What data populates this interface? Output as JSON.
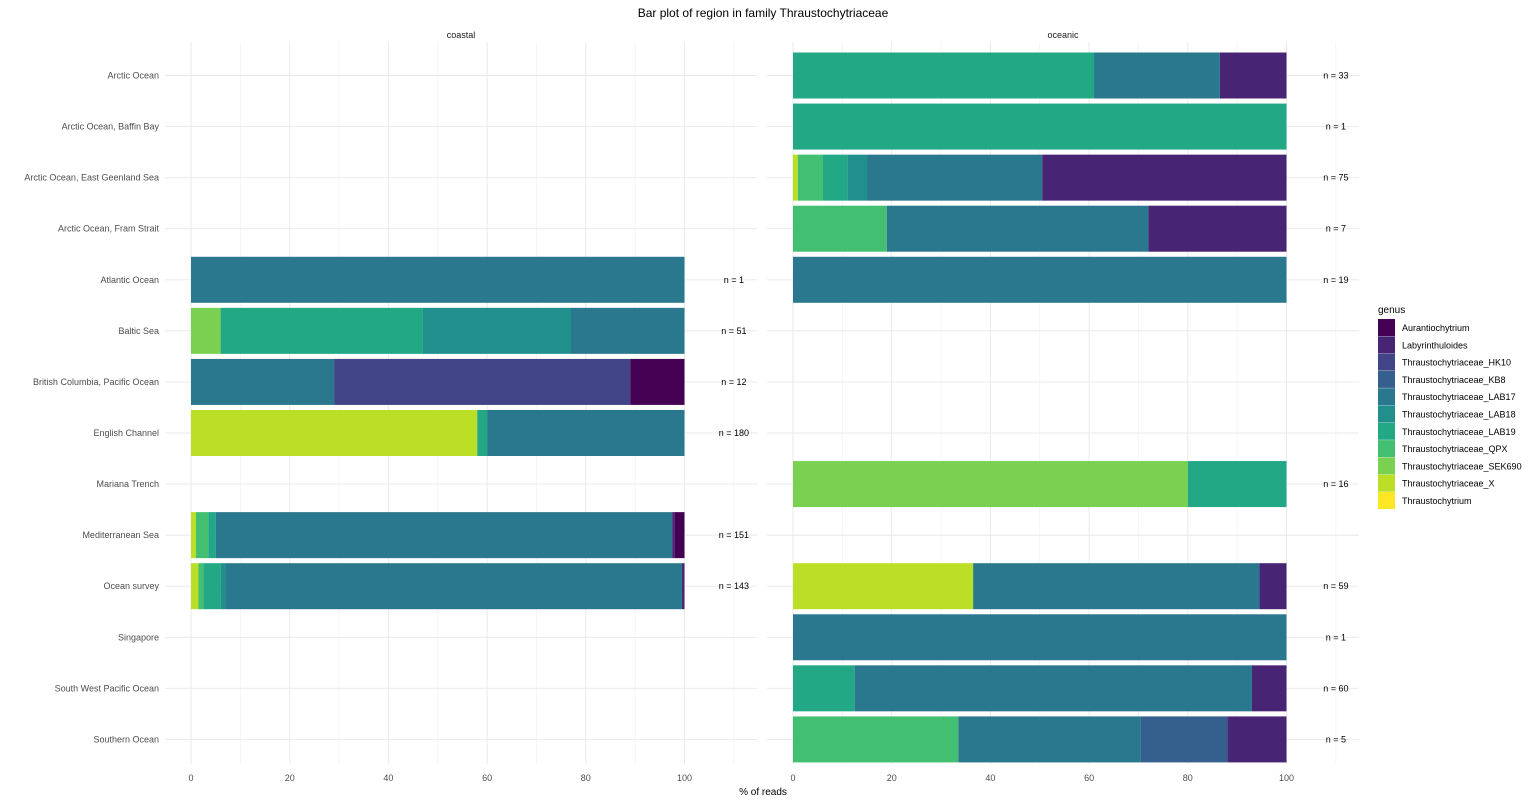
{
  "chart_data": {
    "type": "bar",
    "orientation": "horizontal-stacked",
    "title": "Bar plot of region in family Thraustochytriaceae",
    "xlabel": "% of reads",
    "xlim": [
      0,
      110
    ],
    "xticks": [
      0,
      20,
      40,
      60,
      80,
      100
    ],
    "grid": true,
    "legend_position": "right",
    "legend_title": "genus",
    "regions": [
      "Arctic Ocean",
      "Arctic Ocean, Baffin Bay",
      "Arctic Ocean, East Geenland Sea",
      "Arctic Ocean, Fram Strait",
      "Atlantic Ocean",
      "Baltic Sea",
      "British Columbia, Pacific Ocean",
      "English Channel",
      "Mariana Trench",
      "Mediterranean Sea",
      "Ocean survey",
      "Singapore",
      "South West Pacific Ocean",
      "Southern Ocean"
    ],
    "genera": [
      {
        "name": "Aurantiochytrium",
        "color": "#440154"
      },
      {
        "name": "Labyrinthuloides",
        "color": "#482475"
      },
      {
        "name": "Thraustochytriaceae_HK10",
        "color": "#414487"
      },
      {
        "name": "Thraustochytriaceae_KB8",
        "color": "#355F8D"
      },
      {
        "name": "Thraustochytriaceae_LAB17",
        "color": "#2A788E"
      },
      {
        "name": "Thraustochytriaceae_LAB18",
        "color": "#21908D"
      },
      {
        "name": "Thraustochytriaceae_LAB19",
        "color": "#22A884"
      },
      {
        "name": "Thraustochytriaceae_QPX",
        "color": "#43BF71"
      },
      {
        "name": "Thraustochytriaceae_SEK690",
        "color": "#7AD151"
      },
      {
        "name": "Thraustochytriaceae_X",
        "color": "#BBDF27"
      },
      {
        "name": "Thraustochytrium",
        "color": "#FDE725"
      }
    ],
    "facets": [
      {
        "name": "coastal",
        "bars": [
          {
            "region": "Atlantic Ocean",
            "n_label": "n = 1",
            "segments": [
              {
                "genus": "Thraustochytriaceae_LAB17",
                "value": 100
              }
            ]
          },
          {
            "region": "Baltic Sea",
            "n_label": "n = 51",
            "segments": [
              {
                "genus": "Thraustochytriaceae_SEK690",
                "value": 6
              },
              {
                "genus": "Thraustochytriaceae_LAB19",
                "value": 41
              },
              {
                "genus": "Thraustochytriaceae_LAB18",
                "value": 30
              },
              {
                "genus": "Thraustochytriaceae_LAB17",
                "value": 23
              }
            ]
          },
          {
            "region": "British Columbia, Pacific Ocean",
            "n_label": "n = 12",
            "segments": [
              {
                "genus": "Thraustochytriaceae_LAB17",
                "value": 29
              },
              {
                "genus": "Thraustochytriaceae_HK10",
                "value": 60
              },
              {
                "genus": "Aurantiochytrium",
                "value": 11
              }
            ]
          },
          {
            "region": "English Channel",
            "n_label": "n = 180",
            "segments": [
              {
                "genus": "Thraustochytriaceae_X",
                "value": 58
              },
              {
                "genus": "Thraustochytriaceae_LAB19",
                "value": 2
              },
              {
                "genus": "Thraustochytriaceae_LAB17",
                "value": 40
              }
            ]
          },
          {
            "region": "Mediterranean Sea",
            "n_label": "n = 151",
            "segments": [
              {
                "genus": "Thraustochytriaceae_X",
                "value": 1
              },
              {
                "genus": "Thraustochytriaceae_QPX",
                "value": 2.5
              },
              {
                "genus": "Thraustochytriaceae_LAB19",
                "value": 1.5
              },
              {
                "genus": "Thraustochytriaceae_LAB17",
                "value": 92.5
              },
              {
                "genus": "Labyrinthuloides",
                "value": 0.5
              },
              {
                "genus": "Aurantiochytrium",
                "value": 2
              }
            ]
          },
          {
            "region": "Ocean survey",
            "n_label": "n = 143",
            "segments": [
              {
                "genus": "Thraustochytriaceae_X",
                "value": 1.5
              },
              {
                "genus": "Thraustochytriaceae_QPX",
                "value": 1
              },
              {
                "genus": "Thraustochytriaceae_LAB19",
                "value": 3.5
              },
              {
                "genus": "Thraustochytriaceae_LAB18",
                "value": 1
              },
              {
                "genus": "Thraustochytriaceae_LAB17",
                "value": 92.5
              },
              {
                "genus": "Labyrinthuloides",
                "value": 0.5
              }
            ]
          }
        ]
      },
      {
        "name": "oceanic",
        "bars": [
          {
            "region": "Arctic Ocean",
            "n_label": "n = 33",
            "segments": [
              {
                "genus": "Thraustochytriaceae_LAB19",
                "value": 61
              },
              {
                "genus": "Thraustochytriaceae_LAB17",
                "value": 25.5
              },
              {
                "genus": "Labyrinthuloides",
                "value": 13.5
              }
            ]
          },
          {
            "region": "Arctic Ocean, Baffin Bay",
            "n_label": "n = 1",
            "segments": [
              {
                "genus": "Thraustochytriaceae_LAB19",
                "value": 100
              }
            ]
          },
          {
            "region": "Arctic Ocean, East Geenland Sea",
            "n_label": "n = 75",
            "segments": [
              {
                "genus": "Thraustochytriaceae_X",
                "value": 1
              },
              {
                "genus": "Thraustochytriaceae_QPX",
                "value": 5
              },
              {
                "genus": "Thraustochytriaceae_LAB19",
                "value": 5
              },
              {
                "genus": "Thraustochytriaceae_LAB18",
                "value": 4
              },
              {
                "genus": "Thraustochytriaceae_LAB17",
                "value": 35.5
              },
              {
                "genus": "Labyrinthuloides",
                "value": 49.5
              }
            ]
          },
          {
            "region": "Arctic Ocean, Fram Strait",
            "n_label": "n = 7",
            "segments": [
              {
                "genus": "Thraustochytriaceae_QPX",
                "value": 19
              },
              {
                "genus": "Thraustochytriaceae_LAB17",
                "value": 53
              },
              {
                "genus": "Labyrinthuloides",
                "value": 28
              }
            ]
          },
          {
            "region": "Atlantic Ocean",
            "n_label": "n = 19",
            "segments": [
              {
                "genus": "Thraustochytriaceae_LAB17",
                "value": 100
              }
            ]
          },
          {
            "region": "Mariana Trench",
            "n_label": "n = 16",
            "segments": [
              {
                "genus": "Thraustochytriaceae_SEK690",
                "value": 80
              },
              {
                "genus": "Thraustochytriaceae_LAB19",
                "value": 20
              }
            ]
          },
          {
            "region": "Ocean survey",
            "n_label": "n = 59",
            "segments": [
              {
                "genus": "Thraustochytriaceae_X",
                "value": 36.5
              },
              {
                "genus": "Thraustochytriaceae_LAB17",
                "value": 58
              },
              {
                "genus": "Labyrinthuloides",
                "value": 5.5
              }
            ]
          },
          {
            "region": "Singapore",
            "n_label": "n = 1",
            "segments": [
              {
                "genus": "Thraustochytriaceae_LAB17",
                "value": 100
              }
            ]
          },
          {
            "region": "South West Pacific Ocean",
            "n_label": "n = 60",
            "segments": [
              {
                "genus": "Thraustochytriaceae_LAB19",
                "value": 12.5
              },
              {
                "genus": "Thraustochytriaceae_LAB17",
                "value": 80.5
              },
              {
                "genus": "Labyrinthuloides",
                "value": 7
              }
            ]
          },
          {
            "region": "Southern Ocean",
            "n_label": "n = 5",
            "segments": [
              {
                "genus": "Thraustochytriaceae_QPX",
                "value": 33.5
              },
              {
                "genus": "Thraustochytriaceae_LAB17",
                "value": 37
              },
              {
                "genus": "Thraustochytriaceae_KB8",
                "value": 17.5
              },
              {
                "genus": "Labyrinthuloides",
                "value": 12
              }
            ]
          }
        ]
      }
    ]
  }
}
